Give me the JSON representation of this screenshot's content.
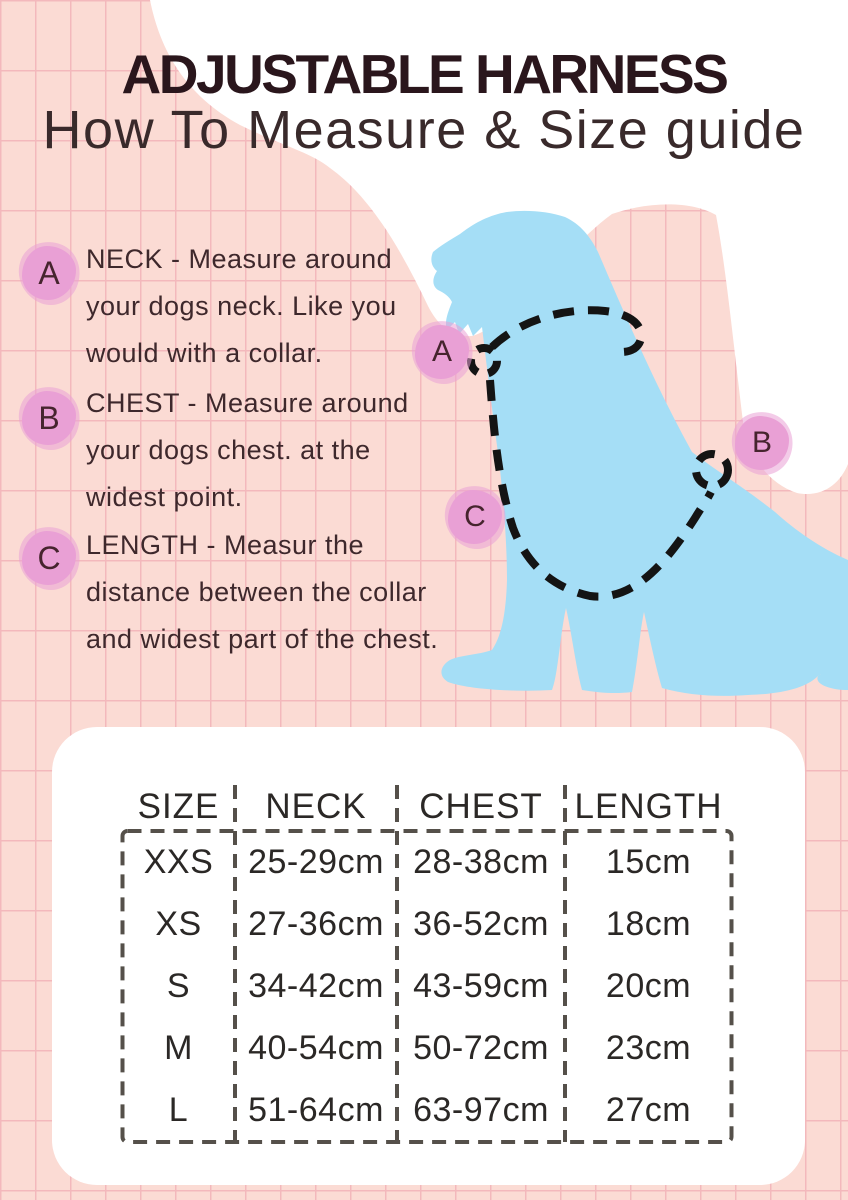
{
  "page": {
    "title": "ADJUSTABLE HARNESS",
    "subtitle": "How To Measure & Size guide"
  },
  "instructions": [
    {
      "label": "A",
      "lines": [
        "NECK - Measure around",
        "your dogs neck. Like you",
        "would with a collar."
      ]
    },
    {
      "label": "B",
      "lines": [
        "CHEST - Measure around",
        "your dogs chest. at the",
        "widest point."
      ]
    },
    {
      "label": "C",
      "lines": [
        "LENGTH - Measur the",
        "distance between the collar",
        "and widest part of the chest."
      ]
    }
  ],
  "diagram": {
    "markers": [
      {
        "label": "A",
        "points_to": "neck"
      },
      {
        "label": "B",
        "points_to": "chest"
      },
      {
        "label": "C",
        "points_to": "length"
      }
    ]
  },
  "size_table": {
    "headers": [
      "SIZE",
      "NECK",
      "CHEST",
      "LENGTH"
    ],
    "rows": [
      [
        "XXS",
        "25-29cm",
        "28-38cm",
        "15cm"
      ],
      [
        "XS",
        "27-36cm",
        "36-52cm",
        "18cm"
      ],
      [
        "S",
        "34-42cm",
        "43-59cm",
        "20cm"
      ],
      [
        "M",
        "40-54cm",
        "50-72cm",
        "23cm"
      ],
      [
        "L",
        "51-64cm",
        "63-97cm",
        "27cm"
      ]
    ]
  },
  "colors": {
    "background_pink": "#fbdbd4",
    "grid_line": "#f3b8bc",
    "blob_white": "#ffffff",
    "accent_pink_circle": "#e9a0d6",
    "circle_letter": "#46242e",
    "dog_blue": "#a5def6",
    "harness_black": "#141414",
    "title_color": "#2a161c",
    "subtitle_color": "#392a2b",
    "body_text": "#3e282c",
    "table_text": "#2b2826",
    "table_dash": "#55504a",
    "card_white": "#ffffff"
  }
}
